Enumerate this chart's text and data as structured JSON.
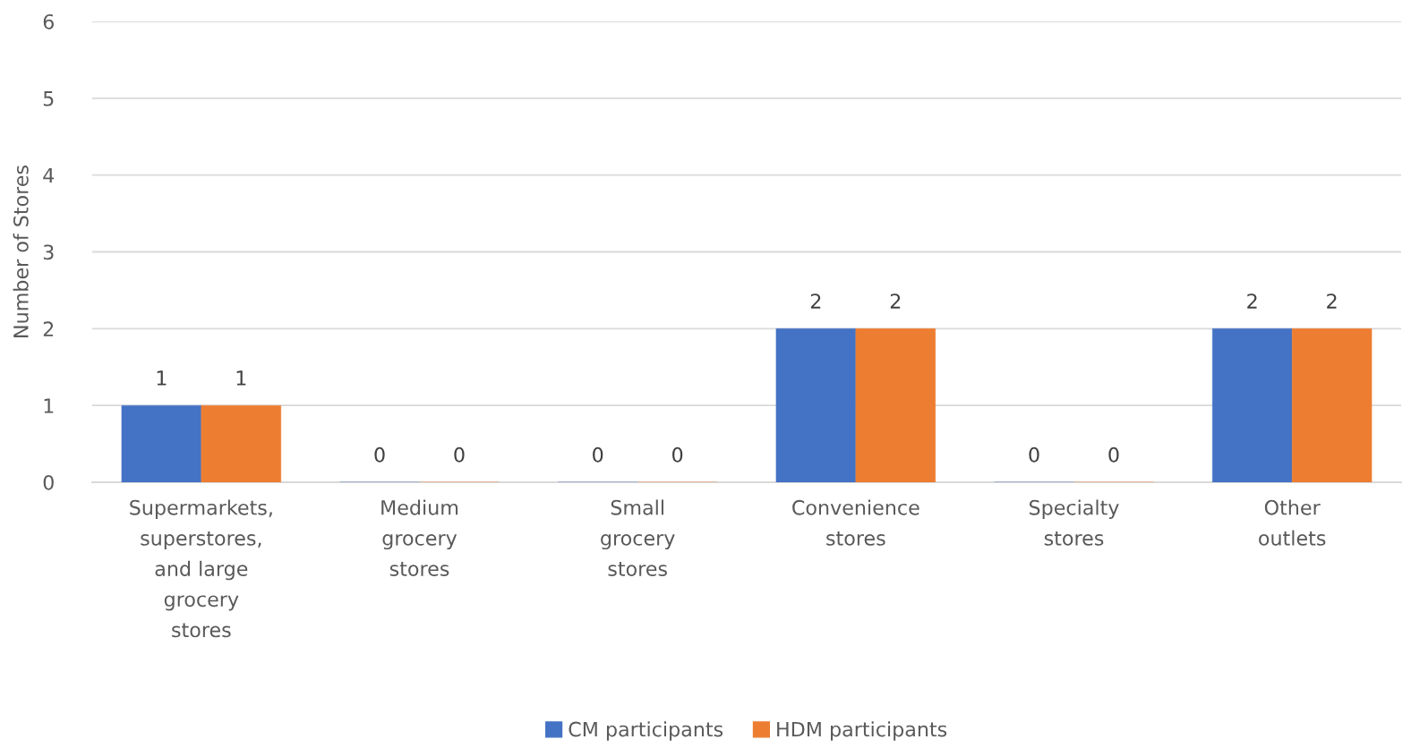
{
  "chart_data": {
    "type": "bar",
    "ylabel": "Number of Stores",
    "categories": [
      "Supermarkets,\nsuperstores,\nand large\ngrocery\nstores",
      "Medium\ngrocery\nstores",
      "Small\ngrocery\nstores",
      "Convenience\nstores",
      "Specialty\nstores",
      "Other\noutlets"
    ],
    "series": [
      {
        "name": "CM participants",
        "color": "#4472c4",
        "values": [
          1,
          0,
          0,
          2,
          0,
          2
        ]
      },
      {
        "name": "HDM participants",
        "color": "#ed7d31",
        "values": [
          1,
          0,
          0,
          2,
          0,
          2
        ]
      }
    ],
    "ylim": [
      0,
      6
    ],
    "yticks": [
      0,
      1,
      2,
      3,
      4,
      5,
      6
    ],
    "grid": "y",
    "legend": "bottom",
    "data_labels": true
  }
}
